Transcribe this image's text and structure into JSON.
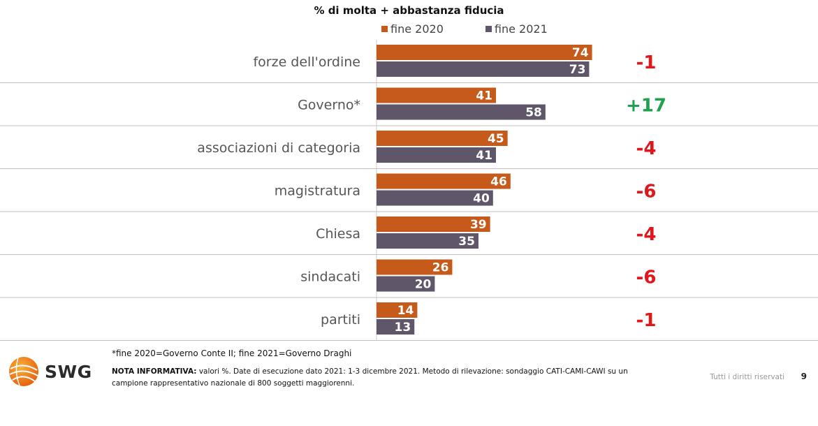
{
  "chart_data": {
    "type": "bar",
    "orientation": "horizontal",
    "title": "% di molta + abbastanza fiducia",
    "categories": [
      "forze dell'ordine",
      "Governo*",
      "associazioni di categoria",
      "magistratura",
      "Chiesa",
      "sindacati",
      "partiti"
    ],
    "series": [
      {
        "name": "fine 2020",
        "color": "#C55A1A",
        "values": [
          74,
          41,
          45,
          46,
          39,
          26,
          14
        ]
      },
      {
        "name": "fine 2021",
        "color": "#5F5669",
        "values": [
          73,
          58,
          41,
          40,
          35,
          20,
          13
        ]
      }
    ],
    "differences": [
      "-1",
      "+17",
      "-4",
      "-6",
      "-4",
      "-6",
      "-1"
    ],
    "positive_color": "#1FA14F",
    "negative_color": "#E0161B",
    "xlim": [
      0,
      100
    ],
    "legend": "top",
    "grid": false
  },
  "footnote": "*fine 2020=Governo Conte II; fine 2021=Governo Draghi",
  "nota": {
    "label": "NOTA INFORMATIVA:",
    "text": " valori %. Date di esecuzione dato 2021: 1-3 dicembre 2021. Metodo di rilevazione: sondaggio CATI-CAMI-CAWI su un campione rappresentativo nazionale di 800 soggetti maggiorenni."
  },
  "rights": "Tutti i diritti riservati",
  "page_number": "9",
  "logo": {
    "text": "SWG",
    "icon": "globe-logo-icon"
  }
}
